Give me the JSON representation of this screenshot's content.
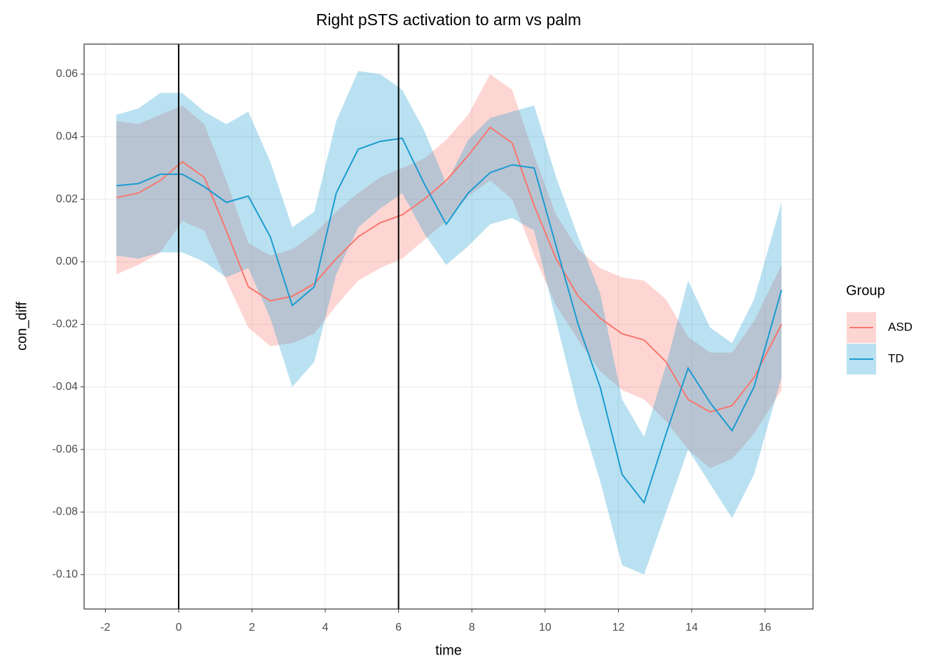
{
  "chart_data": {
    "type": "line",
    "title": "Right pSTS activation to arm vs palm",
    "x_label": "time",
    "y_label": "con_diff",
    "legend_title": "Group",
    "legend_position": "right",
    "grid": true,
    "xlim": [
      -2.58,
      17.31
    ],
    "ylim": [
      -0.111,
      0.0696
    ],
    "xticks": [
      -2,
      0,
      2,
      4,
      6,
      8,
      10,
      12,
      14,
      16
    ],
    "yticks": [
      0.06,
      0.04,
      0.02,
      {
        "value": 0,
        "label": "0.00"
      },
      -0.02,
      -0.04,
      -0.06,
      -0.08,
      {
        "value": -0.1,
        "label": "-0.10"
      }
    ],
    "vlines": [
      0,
      6
    ],
    "x": [
      -1.7,
      -1.1,
      -0.5,
      0.1,
      0.7,
      1.3,
      1.9,
      2.5,
      3.1,
      3.7,
      4.3,
      4.9,
      5.5,
      6.1,
      6.7,
      7.3,
      7.9,
      8.5,
      9.1,
      9.7,
      10.3,
      10.9,
      11.5,
      12.1,
      12.7,
      13.3,
      13.9,
      14.5,
      15.1,
      15.7,
      16.45
    ],
    "series": [
      {
        "name": "ASD",
        "color": "#F8766D",
        "values": [
          0.0205,
          0.022,
          0.026,
          0.032,
          0.027,
          0.01,
          -0.008,
          -0.0125,
          -0.011,
          -0.007,
          0.001,
          0.008,
          0.0125,
          0.015,
          0.02,
          0.026,
          0.034,
          0.043,
          0.038,
          0.018,
          0.001,
          -0.011,
          -0.018,
          -0.023,
          -0.025,
          -0.032,
          -0.044,
          -0.048,
          -0.046,
          -0.037,
          -0.02
        ],
        "lower": [
          -0.004,
          -0.001,
          0.003,
          0.013,
          0.01,
          -0.006,
          -0.021,
          -0.027,
          -0.026,
          -0.023,
          -0.014,
          -0.006,
          -0.002,
          0.001,
          0.007,
          0.013,
          0.021,
          0.026,
          0.02,
          0.002,
          -0.014,
          -0.025,
          -0.035,
          -0.041,
          -0.044,
          -0.051,
          -0.06,
          -0.066,
          -0.063,
          -0.055,
          -0.041
        ],
        "upper": [
          0.045,
          0.044,
          0.047,
          0.05,
          0.044,
          0.026,
          0.006,
          0.002,
          0.004,
          0.009,
          0.016,
          0.022,
          0.027,
          0.03,
          0.033,
          0.039,
          0.047,
          0.06,
          0.055,
          0.034,
          0.015,
          0.004,
          -0.002,
          -0.005,
          -0.006,
          -0.012,
          -0.024,
          -0.029,
          -0.029,
          -0.019,
          -0.001
        ]
      },
      {
        "name": "TD",
        "color": "#1A9BD0",
        "values": [
          0.0243,
          0.025,
          0.028,
          0.028,
          0.024,
          0.019,
          0.021,
          0.008,
          -0.014,
          -0.008,
          0.022,
          0.036,
          0.0385,
          0.0395,
          0.025,
          0.012,
          0.022,
          0.0285,
          0.031,
          0.03,
          0.005,
          -0.02,
          -0.04,
          -0.068,
          -0.077,
          -0.055,
          -0.034,
          -0.045,
          -0.054,
          -0.04,
          -0.009
        ],
        "lower": [
          0.002,
          0.001,
          0.003,
          0.003,
          0.0,
          -0.005,
          -0.002,
          -0.018,
          -0.04,
          -0.032,
          -0.004,
          0.011,
          0.017,
          0.022,
          0.009,
          -0.001,
          0.005,
          0.012,
          0.014,
          0.01,
          -0.019,
          -0.047,
          -0.07,
          -0.097,
          -0.1,
          -0.08,
          -0.06,
          -0.071,
          -0.082,
          -0.068,
          -0.037
        ],
        "upper": [
          0.047,
          0.049,
          0.054,
          0.054,
          0.048,
          0.044,
          0.048,
          0.032,
          0.011,
          0.016,
          0.045,
          0.061,
          0.06,
          0.055,
          0.042,
          0.025,
          0.039,
          0.046,
          0.048,
          0.05,
          0.027,
          0.008,
          -0.01,
          -0.044,
          -0.056,
          -0.033,
          -0.006,
          -0.021,
          -0.026,
          -0.012,
          0.019
        ]
      }
    ]
  }
}
